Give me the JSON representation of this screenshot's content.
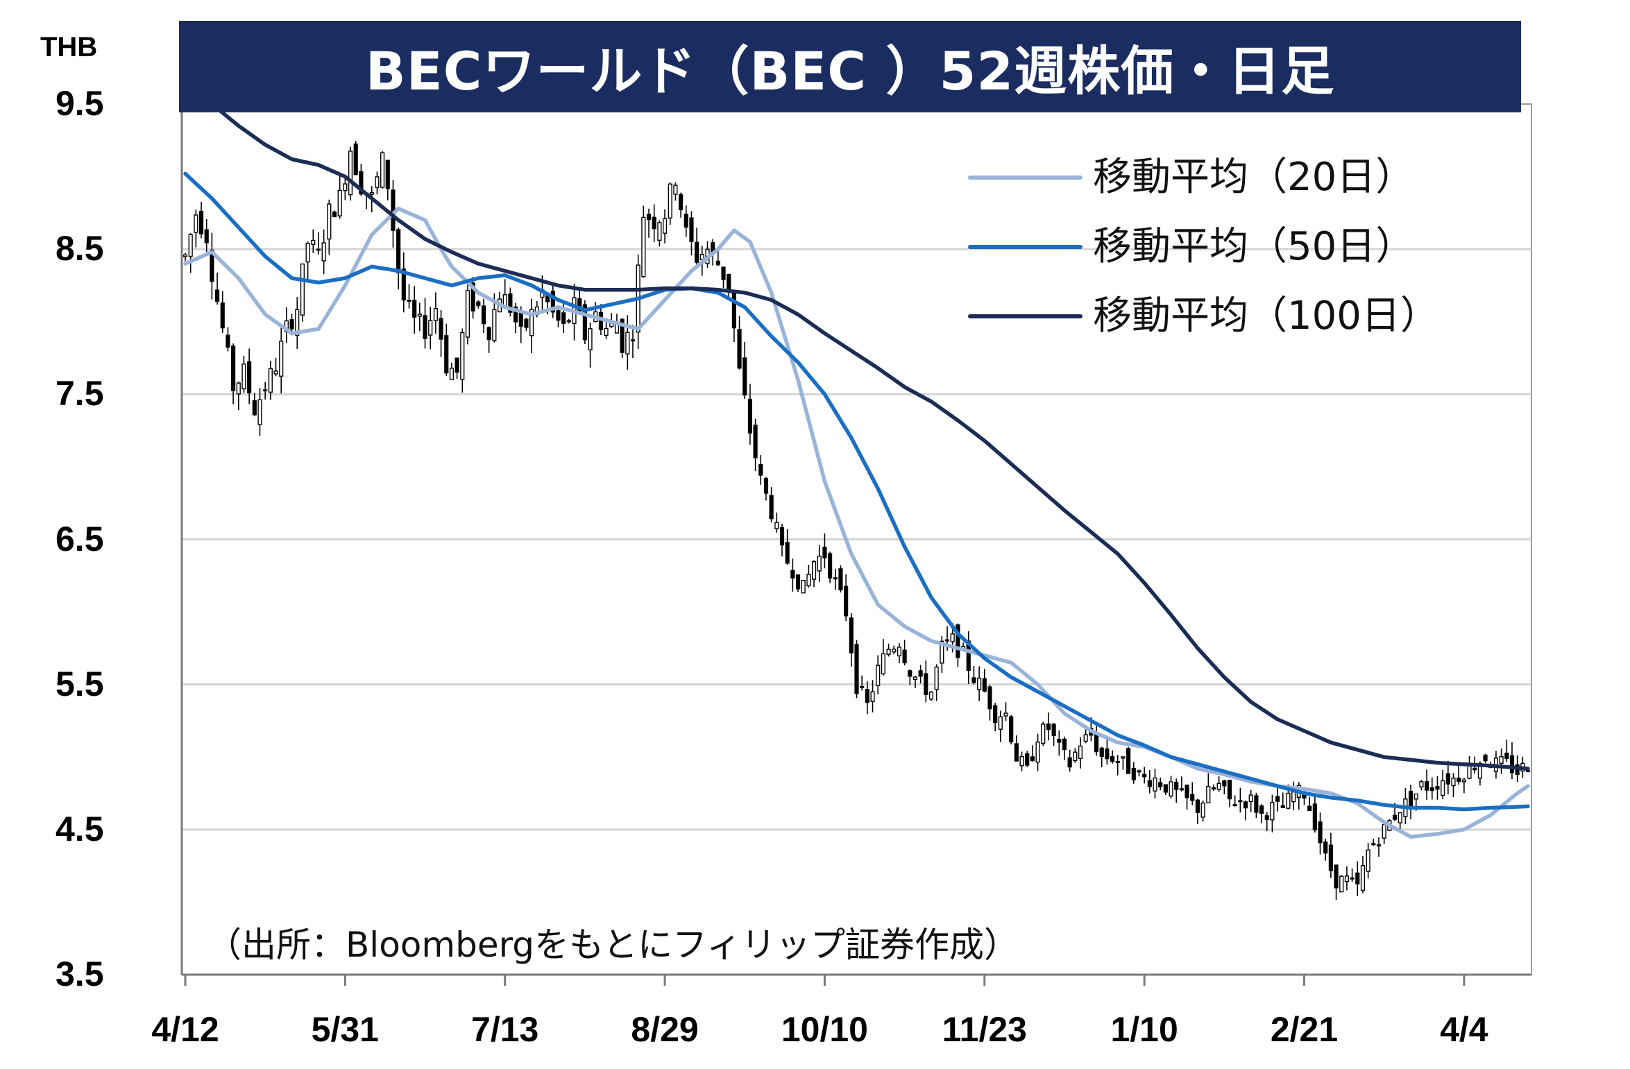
{
  "title": "BECワールド（BEC ）52週株価・日足",
  "unit_label": "THB",
  "source_note": "（出所：Bloombergをもとにフィリップ証券作成）",
  "chart_data": {
    "type": "candlestick",
    "title": "BECワールド（BEC ）52週株価・日足",
    "ylabel": "THB",
    "ylim": [
      3.5,
      9.5
    ],
    "yticks": [
      "9.5",
      "8.5",
      "7.5",
      "6.5",
      "5.5",
      "4.5",
      "3.5"
    ],
    "xticks": [
      "4/12",
      "5/31",
      "7/13",
      "8/29",
      "10/10",
      "11/23",
      "1/10",
      "2/21",
      "4/4"
    ],
    "grid": true,
    "legend_position": "top-right",
    "colors": {
      "ma20": "#9ab3d8",
      "ma50": "#1a6fc4",
      "ma100": "#1b2d55",
      "candle": "#000000",
      "title_bg": "#1b2d60"
    },
    "price_path": {
      "x": [
        0,
        2,
        4,
        5,
        7,
        9,
        11,
        13,
        15,
        17,
        19,
        21,
        23,
        25,
        27,
        29,
        31,
        33,
        35,
        37,
        38,
        40,
        41,
        43,
        45,
        47,
        49,
        51,
        53,
        55,
        57,
        59,
        61,
        63,
        65,
        67,
        69,
        71,
        73,
        75,
        77,
        79,
        81,
        82,
        84,
        86,
        88,
        90,
        92,
        94,
        96,
        98,
        100,
        102,
        104,
        106,
        108,
        110,
        112,
        114,
        116,
        118,
        120,
        122,
        124,
        126,
        128,
        130,
        132,
        134,
        136,
        138,
        140,
        142,
        144,
        146,
        148,
        150,
        152,
        154,
        156,
        158,
        160,
        162,
        164,
        166,
        168,
        170,
        172,
        174,
        176,
        178,
        180,
        182,
        184,
        186,
        188,
        190,
        192,
        194,
        196,
        198,
        200,
        202,
        204,
        206,
        208,
        210,
        212,
        214,
        216,
        218,
        220,
        222,
        224,
        226,
        228,
        230,
        232,
        234,
        236,
        238,
        240,
        242,
        244,
        246,
        248,
        250,
        252
      ],
      "close": [
        8.45,
        8.75,
        8.6,
        8.35,
        7.95,
        7.55,
        7.65,
        7.4,
        7.55,
        7.7,
        7.95,
        8.1,
        8.55,
        8.45,
        8.75,
        8.85,
        9.2,
        8.95,
        8.85,
        9.1,
        8.95,
        8.35,
        8.15,
        8.0,
        7.95,
        8.1,
        7.7,
        7.65,
        8.15,
        8.1,
        7.95,
        8.2,
        8.1,
        7.9,
        8.05,
        8.2,
        8.05,
        7.95,
        8.1,
        7.9,
        8.05,
        7.95,
        8.0,
        7.85,
        7.95,
        8.75,
        8.7,
        8.75,
        9.0,
        8.6,
        8.45,
        8.5,
        8.4,
        8.25,
        7.65,
        7.25,
        6.9,
        6.7,
        6.4,
        6.3,
        6.15,
        6.35,
        6.4,
        6.2,
        6.0,
        5.5,
        5.35,
        5.6,
        5.75,
        5.8,
        5.6,
        5.5,
        5.45,
        5.75,
        5.8,
        5.7,
        5.55,
        5.45,
        5.3,
        5.3,
        5.0,
        4.9,
        5.15,
        5.2,
        5.05,
        4.95,
        5.1,
        5.15,
        5.0,
        5.0,
        4.95,
        4.9,
        4.85,
        4.85,
        4.8,
        4.75,
        4.7,
        4.65,
        4.75,
        4.8,
        4.7,
        4.7,
        4.7,
        4.6,
        4.65,
        4.65,
        4.75,
        4.75,
        4.55,
        4.3,
        4.15,
        4.15,
        4.1,
        4.35,
        4.45,
        4.55,
        4.65,
        4.7,
        4.8,
        4.8,
        4.85,
        4.85,
        4.9,
        4.95,
        5.0,
        4.95,
        4.95,
        4.9,
        4.95
      ]
    },
    "series": [
      {
        "name": "移動平均（20日）",
        "x": [
          0,
          5,
          10,
          15,
          20,
          25,
          30,
          35,
          40,
          45,
          48,
          50,
          55,
          60,
          65,
          70,
          75,
          80,
          85,
          90,
          95,
          100,
          103,
          106,
          110,
          115,
          120,
          125,
          130,
          135,
          140,
          145,
          150,
          155,
          160,
          165,
          170,
          175,
          180,
          185,
          190,
          195,
          200,
          205,
          210,
          215,
          220,
          225,
          230,
          235,
          240,
          245,
          250,
          252
        ],
        "values": [
          8.4,
          8.48,
          8.3,
          8.05,
          7.92,
          7.95,
          8.25,
          8.6,
          8.78,
          8.7,
          8.5,
          8.38,
          8.2,
          8.1,
          8.05,
          8.1,
          8.05,
          8.0,
          7.95,
          8.15,
          8.35,
          8.5,
          8.63,
          8.55,
          8.2,
          7.6,
          6.9,
          6.4,
          6.05,
          5.9,
          5.8,
          5.75,
          5.7,
          5.65,
          5.5,
          5.3,
          5.18,
          5.1,
          5.07,
          5.0,
          4.92,
          4.88,
          4.83,
          4.8,
          4.78,
          4.75,
          4.68,
          4.55,
          4.45,
          4.47,
          4.5,
          4.6,
          4.75,
          4.8
        ]
      },
      {
        "name": "移動平均（50日）",
        "x": [
          0,
          5,
          10,
          15,
          20,
          25,
          30,
          35,
          40,
          45,
          50,
          55,
          60,
          65,
          70,
          75,
          80,
          85,
          90,
          95,
          100,
          105,
          110,
          115,
          120,
          125,
          130,
          135,
          140,
          145,
          150,
          155,
          160,
          165,
          170,
          175,
          180,
          185,
          190,
          195,
          200,
          205,
          210,
          215,
          220,
          225,
          230,
          235,
          240,
          245,
          252
        ],
        "values": [
          9.02,
          8.85,
          8.65,
          8.45,
          8.3,
          8.27,
          8.3,
          8.38,
          8.35,
          8.3,
          8.25,
          8.3,
          8.32,
          8.25,
          8.15,
          8.08,
          8.12,
          8.16,
          8.22,
          8.23,
          8.2,
          8.1,
          7.9,
          7.72,
          7.5,
          7.2,
          6.85,
          6.45,
          6.1,
          5.85,
          5.68,
          5.55,
          5.45,
          5.35,
          5.25,
          5.15,
          5.08,
          5.0,
          4.95,
          4.9,
          4.85,
          4.8,
          4.75,
          4.72,
          4.7,
          4.67,
          4.65,
          4.65,
          4.64,
          4.65,
          4.66
        ]
      },
      {
        "name": "移動平均（100日）",
        "x": [
          0,
          5,
          10,
          15,
          20,
          25,
          30,
          35,
          40,
          45,
          50,
          55,
          60,
          65,
          70,
          75,
          80,
          85,
          90,
          95,
          100,
          105,
          110,
          115,
          120,
          125,
          130,
          135,
          140,
          145,
          150,
          155,
          160,
          165,
          170,
          175,
          180,
          185,
          190,
          195,
          200,
          205,
          210,
          215,
          220,
          225,
          230,
          235,
          240,
          245,
          252
        ],
        "values": [
          9.65,
          9.5,
          9.35,
          9.22,
          9.12,
          9.08,
          9.0,
          8.85,
          8.7,
          8.57,
          8.48,
          8.4,
          8.35,
          8.3,
          8.25,
          8.22,
          8.22,
          8.22,
          8.23,
          8.23,
          8.22,
          8.2,
          8.15,
          8.05,
          7.92,
          7.8,
          7.68,
          7.55,
          7.45,
          7.32,
          7.18,
          7.02,
          6.86,
          6.7,
          6.55,
          6.4,
          6.2,
          5.98,
          5.75,
          5.55,
          5.38,
          5.26,
          5.18,
          5.1,
          5.05,
          5.0,
          4.98,
          4.96,
          4.95,
          4.94,
          4.92
        ]
      }
    ]
  }
}
